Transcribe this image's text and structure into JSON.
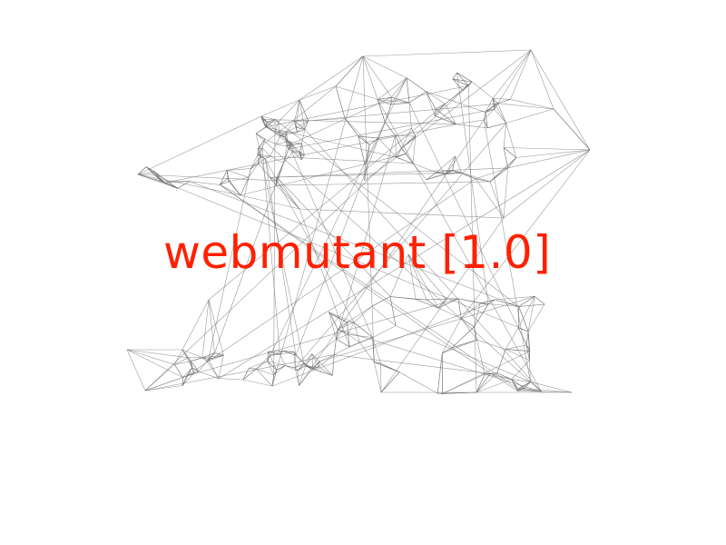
{
  "title": "webmutant [1.0]",
  "colors": {
    "title": "#ff2000",
    "wire": "#6e6e6e",
    "background": "#ffffff"
  },
  "graphic": "wireframe-mesh"
}
